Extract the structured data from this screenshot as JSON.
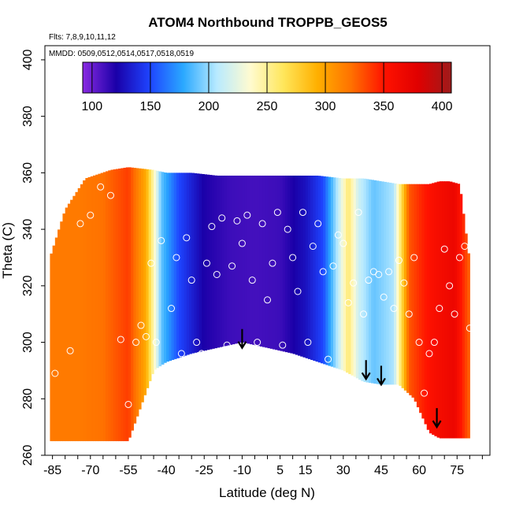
{
  "chart_data": {
    "type": "heatmap",
    "title": "ATOM4 Northbound TROPPB_GEOS5",
    "subtitle_flights": "Flts: 7,8,9,10,11,12",
    "subtitle_dates": "MMDD: 0509,0512,0514,0517,0518,0519",
    "xlabel": "Latitude (deg N)",
    "ylabel": "Theta (C)",
    "xlim": [
      -88,
      88
    ],
    "ylim": [
      260,
      405
    ],
    "x_ticks": [
      -85,
      -70,
      -55,
      -40,
      -25,
      -10,
      5,
      15,
      30,
      45,
      60,
      75
    ],
    "y_ticks": [
      260,
      280,
      300,
      320,
      340,
      360,
      380,
      400
    ],
    "colorbar": {
      "range": [
        92,
        408
      ],
      "ticks": [
        100,
        150,
        200,
        250,
        300,
        350,
        400
      ],
      "stops": [
        "#8a2be2",
        "#1a00a8",
        "#1e44ff",
        "#2aa8ff",
        "#b8eaff",
        "#fffbd0",
        "#ffe65a",
        "#ffb000",
        "#ff7200",
        "#ff1200",
        "#e00000",
        "#9e1b1b"
      ]
    },
    "field_profile": {
      "lat": [
        -85,
        -75,
        -65,
        -60,
        -55,
        -48,
        -42,
        -35,
        -25,
        -15,
        -5,
        5,
        15,
        22,
        28,
        32,
        36,
        42,
        50,
        56,
        62,
        68,
        74,
        80
      ],
      "value": [
        318,
        318,
        322,
        330,
        338,
        295,
        190,
        150,
        120,
        112,
        110,
        112,
        128,
        150,
        210,
        260,
        215,
        190,
        205,
        330,
        348,
        360,
        368,
        325
      ]
    },
    "data_extent": {
      "lat": [
        -86,
        -80,
        -72,
        -62,
        -55,
        -45,
        -40,
        -30,
        -20,
        -10,
        0,
        10,
        20,
        30,
        38,
        45,
        52,
        58,
        64,
        68,
        72,
        76,
        80
      ],
      "theta_top": [
        330,
        347,
        358,
        361,
        362,
        361,
        360,
        360,
        359,
        359,
        359,
        359,
        359,
        358,
        358,
        357,
        356,
        356,
        356,
        357,
        357,
        356,
        328
      ],
      "theta_bottom": [
        265,
        265,
        265,
        265,
        265,
        290,
        293,
        296,
        298,
        300,
        298,
        296,
        293,
        290,
        286,
        285,
        285,
        280,
        268,
        266,
        266,
        266,
        266
      ]
    },
    "observations": {
      "lat": [
        -84,
        -78,
        -74,
        -70,
        -66,
        -62,
        -58,
        -55,
        -52,
        -50,
        -48,
        -46,
        -44,
        -42,
        -40,
        -38,
        -36,
        -34,
        -32,
        -30,
        -28,
        -26,
        -24,
        -22,
        -20,
        -18,
        -16,
        -14,
        -12,
        -10,
        -8,
        -6,
        -4,
        -2,
        0,
        2,
        4,
        6,
        8,
        10,
        12,
        14,
        16,
        18,
        20,
        22,
        24,
        26,
        28,
        30,
        32,
        34,
        36,
        38,
        40,
        42,
        44,
        46,
        48,
        50,
        52,
        54,
        56,
        58,
        60,
        62,
        64,
        66,
        68,
        70,
        72,
        74,
        76,
        78,
        80
      ],
      "theta": [
        289,
        297,
        342,
        345,
        355,
        352,
        301,
        278,
        300,
        306,
        302,
        328,
        300,
        336,
        290,
        312,
        330,
        296,
        337,
        322,
        300,
        296,
        328,
        341,
        324,
        344,
        299,
        327,
        343,
        335,
        345,
        322,
        300,
        342,
        315,
        328,
        346,
        299,
        340,
        330,
        318,
        346,
        300,
        334,
        342,
        325,
        294,
        327,
        338,
        335,
        314,
        321,
        346,
        310,
        322,
        325,
        324,
        316,
        325,
        312,
        329,
        321,
        310,
        330,
        300,
        282,
        296,
        300,
        312,
        333,
        320,
        310,
        330,
        334,
        305
      ]
    },
    "annotations": {
      "arrows_lat": [
        -10,
        39,
        45,
        67
      ],
      "arrows_theta": [
        298,
        287,
        285,
        270
      ]
    }
  }
}
